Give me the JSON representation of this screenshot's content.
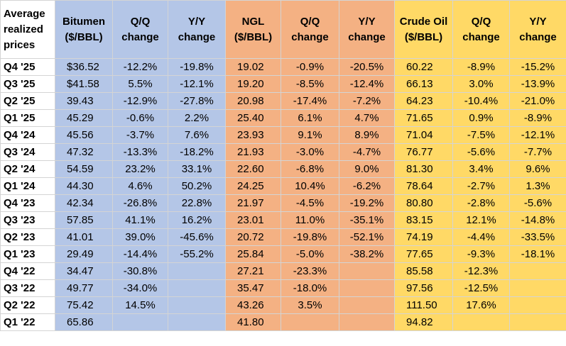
{
  "chart_data": {
    "type": "table",
    "headers": [
      "Average realized prices",
      "Bitumen ($/BBL)",
      "Q/Q change",
      "Y/Y change",
      "NGL ($/BBL)",
      "Q/Q change",
      "Y/Y change",
      "Crude Oil ($/BBL)",
      "Q/Q change",
      "Y/Y change"
    ],
    "groups": [
      {
        "name": "Bitumen",
        "color": "#b4c6e7"
      },
      {
        "name": "NGL",
        "color": "#f4b183"
      },
      {
        "name": "Crude Oil",
        "color": "#ffd966"
      }
    ],
    "rows": [
      [
        "Q4 '25",
        "$36.52",
        "-12.2%",
        "-19.8%",
        "19.02",
        "-0.9%",
        "-20.5%",
        "60.22",
        "-8.9%",
        "-15.2%"
      ],
      [
        "Q3 '25",
        "$41.58",
        "5.5%",
        "-12.1%",
        "19.20",
        "-8.5%",
        "-12.4%",
        "66.13",
        "3.0%",
        "-13.9%"
      ],
      [
        "Q2 '25",
        "39.43",
        "-12.9%",
        "-27.8%",
        "20.98",
        "-17.4%",
        "-7.2%",
        "64.23",
        "-10.4%",
        "-21.0%"
      ],
      [
        "Q1 '25",
        "45.29",
        "-0.6%",
        "2.2%",
        "25.40",
        "6.1%",
        "4.7%",
        "71.65",
        "0.9%",
        "-8.9%"
      ],
      [
        "Q4 '24",
        "45.56",
        "-3.7%",
        "7.6%",
        "23.93",
        "9.1%",
        "8.9%",
        "71.04",
        "-7.5%",
        "-12.1%"
      ],
      [
        "Q3 '24",
        "47.32",
        "-13.3%",
        "-18.2%",
        "21.93",
        "-3.0%",
        "-4.7%",
        "76.77",
        "-5.6%",
        "-7.7%"
      ],
      [
        "Q2 '24",
        "54.59",
        "23.2%",
        "33.1%",
        "22.60",
        "-6.8%",
        "9.0%",
        "81.30",
        "3.4%",
        "9.6%"
      ],
      [
        "Q1 '24",
        "44.30",
        "4.6%",
        "50.2%",
        "24.25",
        "10.4%",
        "-6.2%",
        "78.64",
        "-2.7%",
        "1.3%"
      ],
      [
        "Q4 '23",
        "42.34",
        "-26.8%",
        "22.8%",
        "21.97",
        "-4.5%",
        "-19.2%",
        "80.80",
        "-2.8%",
        "-5.6%"
      ],
      [
        "Q3 '23",
        "57.85",
        "41.1%",
        "16.2%",
        "23.01",
        "11.0%",
        "-35.1%",
        "83.15",
        "12.1%",
        "-14.8%"
      ],
      [
        "Q2 '23",
        "41.01",
        "39.0%",
        "-45.6%",
        "20.72",
        "-19.8%",
        "-52.1%",
        "74.19",
        "-4.4%",
        "-33.5%"
      ],
      [
        "Q1 '23",
        "29.49",
        "-14.4%",
        "-55.2%",
        "25.84",
        "-5.0%",
        "-38.2%",
        "77.65",
        "-9.3%",
        "-18.1%"
      ],
      [
        "Q4 '22",
        "34.47",
        "-30.8%",
        "",
        "27.21",
        "-23.3%",
        "",
        "85.58",
        "-12.3%",
        ""
      ],
      [
        "Q3 '22",
        "49.77",
        "-34.0%",
        "",
        "35.47",
        "-18.0%",
        "",
        "97.56",
        "-12.5%",
        ""
      ],
      [
        "Q2 '22",
        "75.42",
        "14.5%",
        "",
        "43.26",
        "3.5%",
        "",
        "111.50",
        "17.6%",
        ""
      ],
      [
        "Q1 '22",
        "65.86",
        "",
        "",
        "41.80",
        "",
        "",
        "94.82",
        "",
        ""
      ]
    ]
  }
}
